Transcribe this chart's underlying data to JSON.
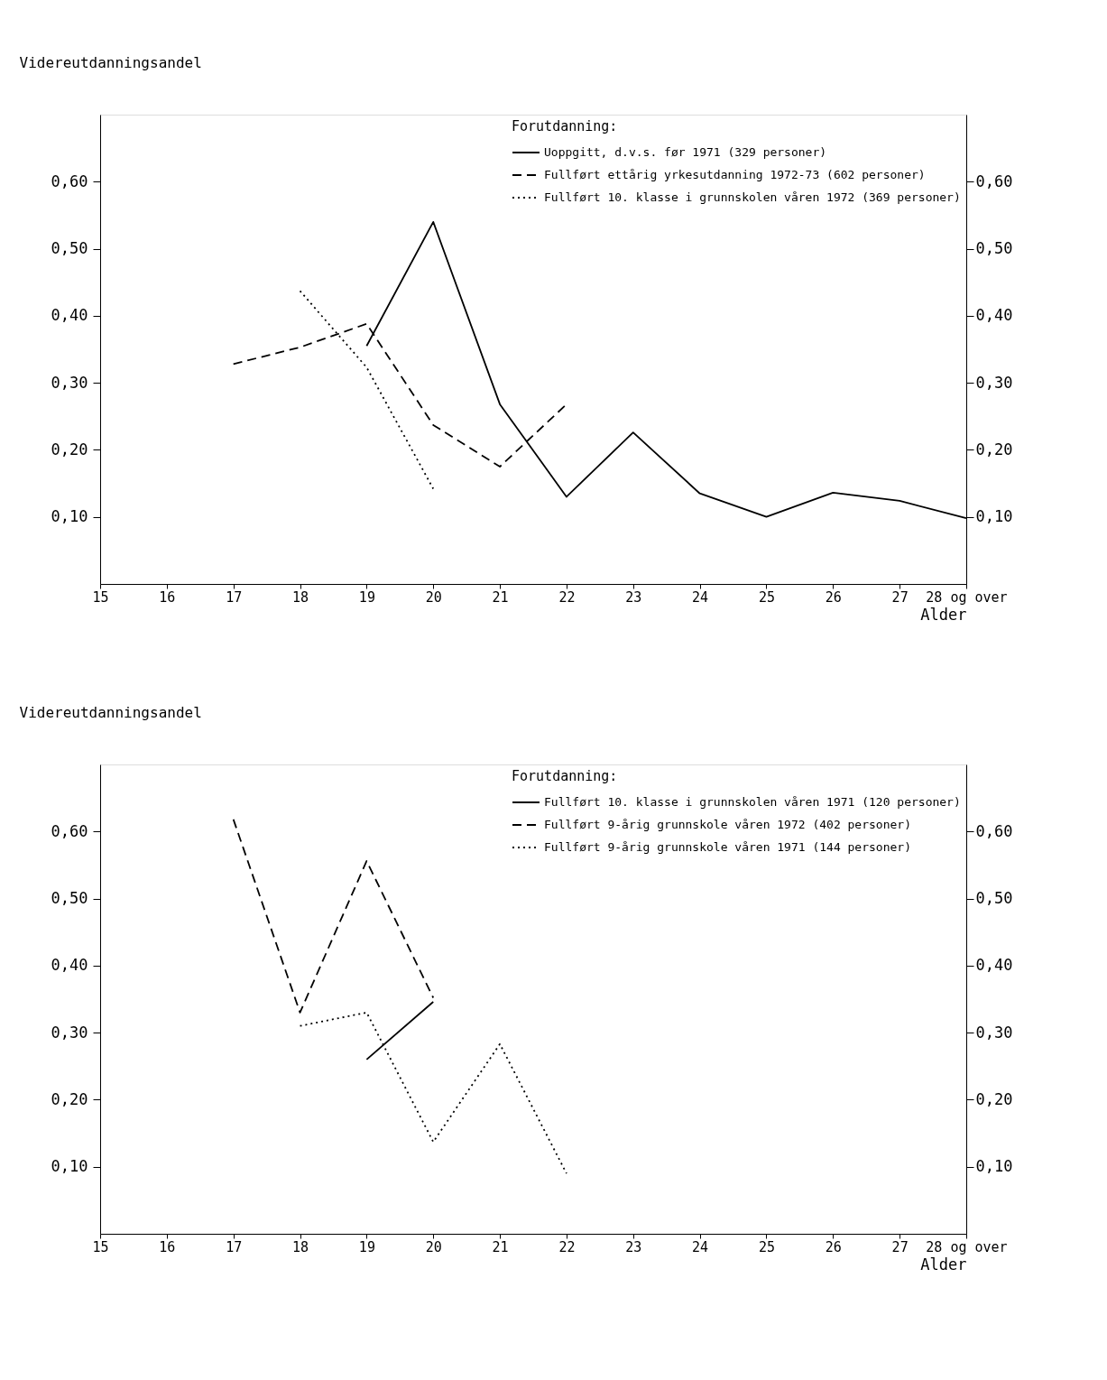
{
  "chart_data": [
    {
      "type": "line",
      "ylabel": "Videreutdanningsandel",
      "xlabel": "Alder",
      "legend_title": "Forutdanning:",
      "legend": "top right",
      "grid": false,
      "marker": "none",
      "xlim": [
        15,
        28
      ],
      "xticks": [
        15,
        16,
        17,
        18,
        19,
        20,
        21,
        22,
        23,
        24,
        25,
        26,
        27,
        {
          "value": 28,
          "label": "28 og over"
        }
      ],
      "ylim": [
        0,
        0.7
      ],
      "yticks": [
        {
          "value": 0.1,
          "label": "0,10"
        },
        {
          "value": 0.2,
          "label": "0,20"
        },
        {
          "value": 0.3,
          "label": "0,30"
        },
        {
          "value": 0.4,
          "label": "0,40"
        },
        {
          "value": 0.5,
          "label": "0,50"
        },
        {
          "value": 0.6,
          "label": "0,60"
        }
      ],
      "y2lim": [
        0,
        0.7
      ],
      "y2ticks": [
        {
          "value": 0.1,
          "label": "0,10"
        },
        {
          "value": 0.2,
          "label": "0,20"
        },
        {
          "value": 0.3,
          "label": "0,30"
        },
        {
          "value": 0.4,
          "label": "0,40"
        },
        {
          "value": 0.5,
          "label": "0,50"
        },
        {
          "value": 0.6,
          "label": "0,60"
        }
      ],
      "series": [
        {
          "name": "Uoppgitt, d.v.s. før 1971 (329 personer)",
          "color": "#000000",
          "line_style": "solid",
          "x": [
            19,
            20,
            21,
            22,
            23,
            24,
            25,
            26,
            27,
            28
          ],
          "values": [
            0.355,
            0.54,
            0.268,
            0.13,
            0.226,
            0.135,
            0.1,
            0.136,
            0.124,
            0.098
          ]
        },
        {
          "name": "Fullført ettårig yrkesutdanning 1972-73 (602 personer)",
          "color": "#000000",
          "line_style": "dashed",
          "x": [
            17,
            18,
            19,
            20,
            21,
            22
          ],
          "values": [
            0.328,
            0.353,
            0.388,
            0.237,
            0.175,
            0.268
          ]
        },
        {
          "name": "Fullført 10. klasse i grunnskolen våren 1972 (369 personer)",
          "color": "#000000",
          "line_style": "dotted",
          "x": [
            18,
            19,
            20
          ],
          "values": [
            0.437,
            0.323,
            0.142
          ]
        }
      ]
    },
    {
      "type": "line",
      "ylabel": "Videreutdanningsandel",
      "xlabel": "Alder",
      "legend_title": "Forutdanning:",
      "legend": "top right",
      "grid": false,
      "marker": "none",
      "xlim": [
        15,
        28
      ],
      "xticks": [
        15,
        16,
        17,
        18,
        19,
        20,
        21,
        22,
        23,
        24,
        25,
        26,
        27,
        {
          "value": 28,
          "label": "28 og over"
        }
      ],
      "ylim": [
        0,
        0.7
      ],
      "yticks": [
        {
          "value": 0.1,
          "label": "0,10"
        },
        {
          "value": 0.2,
          "label": "0,20"
        },
        {
          "value": 0.3,
          "label": "0,30"
        },
        {
          "value": 0.4,
          "label": "0,40"
        },
        {
          "value": 0.5,
          "label": "0,50"
        },
        {
          "value": 0.6,
          "label": "0,60"
        }
      ],
      "y2lim": [
        0,
        0.7
      ],
      "y2ticks": [
        {
          "value": 0.1,
          "label": "0,10"
        },
        {
          "value": 0.2,
          "label": "0,20"
        },
        {
          "value": 0.3,
          "label": "0,30"
        },
        {
          "value": 0.4,
          "label": "0,40"
        },
        {
          "value": 0.5,
          "label": "0,50"
        },
        {
          "value": 0.6,
          "label": "0,60"
        }
      ],
      "series": [
        {
          "name": "Fullført 10. klasse i grunnskolen våren 1971 (120 personer)",
          "color": "#000000",
          "line_style": "solid",
          "x": [
            19,
            20
          ],
          "values": [
            0.26,
            0.346
          ]
        },
        {
          "name": "Fullført 9-årig grunnskole våren 1972 (402 personer)",
          "color": "#000000",
          "line_style": "dashed",
          "x": [
            17,
            18,
            19,
            20
          ],
          "values": [
            0.618,
            0.33,
            0.556,
            0.352
          ]
        },
        {
          "name": "Fullført 9-årig grunnskole våren 1971 (144 personer)",
          "color": "#000000",
          "line_style": "dotted",
          "x": [
            18,
            19,
            20,
            21,
            22
          ],
          "values": [
            0.31,
            0.33,
            0.137,
            0.283,
            0.09
          ]
        }
      ]
    }
  ]
}
